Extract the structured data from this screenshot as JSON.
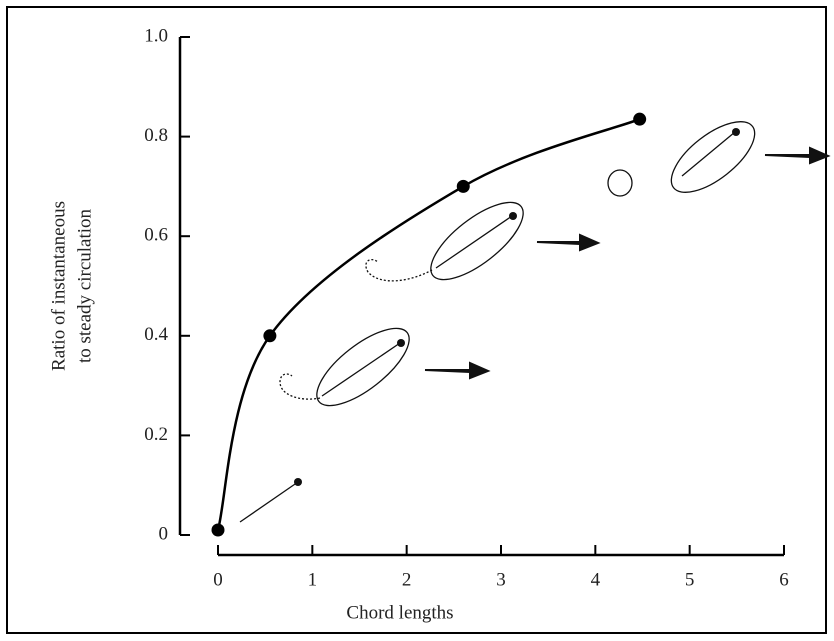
{
  "chart_data": {
    "type": "line",
    "xlabel": "Chord lengths",
    "ylabel": [
      "Ratio of instantaneous",
      "to steady circulation"
    ],
    "x": [
      0,
      0.55,
      2.6,
      4.47
    ],
    "values": [
      0.01,
      0.4,
      0.7,
      0.835
    ],
    "color": "#000000",
    "xlim": [
      0,
      6
    ],
    "xticks": [
      0,
      1,
      2,
      3,
      4,
      5,
      6
    ],
    "ylim": [
      0,
      1
    ],
    "yticks": [
      0,
      0.2,
      0.4,
      0.6,
      0.8,
      {
        "value": 1,
        "label": "1.0"
      }
    ],
    "grid": false
  }
}
